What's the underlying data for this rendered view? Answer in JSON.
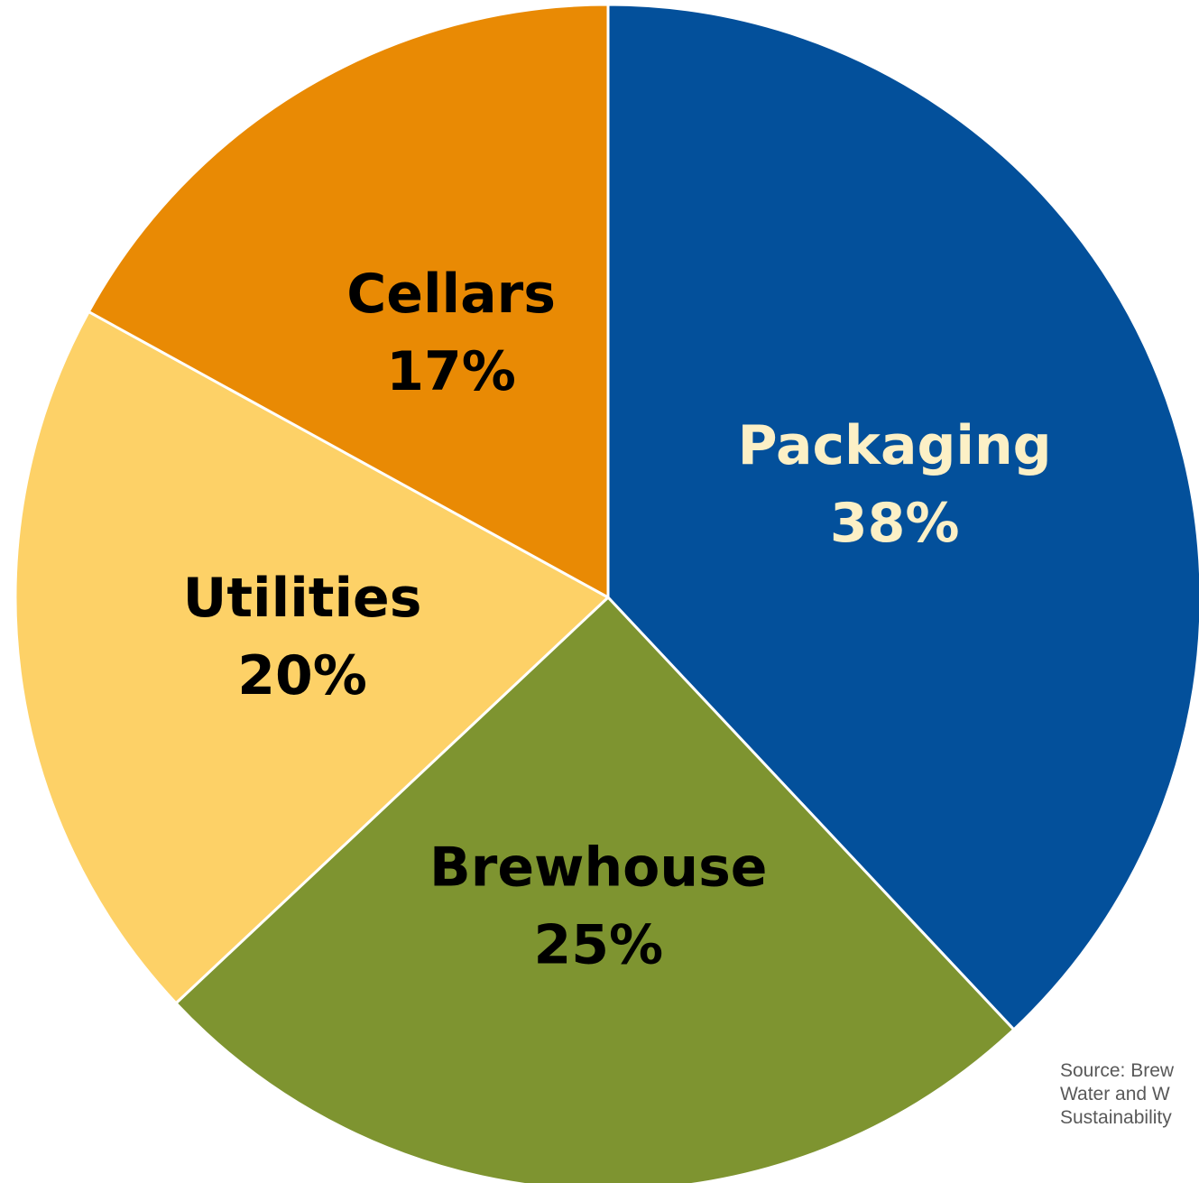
{
  "chart_data": {
    "type": "pie",
    "start_angle_deg": 0,
    "direction": "clockwise",
    "slices": [
      {
        "label": "Packaging",
        "value": 38,
        "value_label": "38%",
        "color": "#03509B",
        "text_color": "#FCF0C6"
      },
      {
        "label": "Brewhouse",
        "value": 25,
        "value_label": "25%",
        "color": "#7E9430",
        "text_color": "#000000"
      },
      {
        "label": "Utilities",
        "value": 20,
        "value_label": "20%",
        "color": "#FDD167",
        "text_color": "#000000"
      },
      {
        "label": "Cellars",
        "value": 17,
        "value_label": "17%",
        "color": "#E98A04",
        "text_color": "#000000"
      }
    ],
    "separator_color": "#FFFFFF"
  },
  "source_note": {
    "lines": [
      "Source: Brew",
      "Water and W",
      "Sustainability"
    ]
  }
}
